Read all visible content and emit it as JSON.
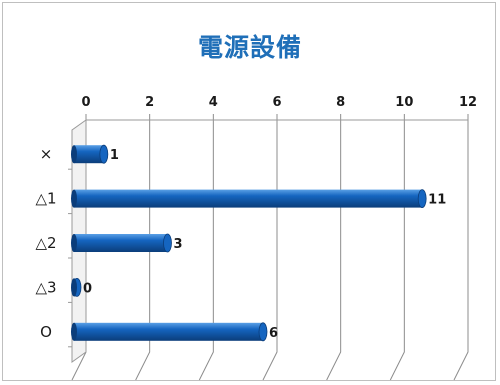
{
  "chart_data": {
    "type": "bar",
    "orientation": "horizontal",
    "title": "電源設備",
    "categories": [
      "×",
      "△1",
      "△2",
      "△3",
      "O"
    ],
    "values": [
      1,
      11,
      3,
      0,
      6
    ],
    "xlim": [
      0,
      12
    ],
    "ticks": [
      "0",
      "2",
      "4",
      "6",
      "8",
      "10",
      "12"
    ],
    "grid": true,
    "legend": "none",
    "bar_color": "#1565c0",
    "bar_highlight": "#5aa0e6",
    "bar_shadow": "#0b3d7a"
  }
}
